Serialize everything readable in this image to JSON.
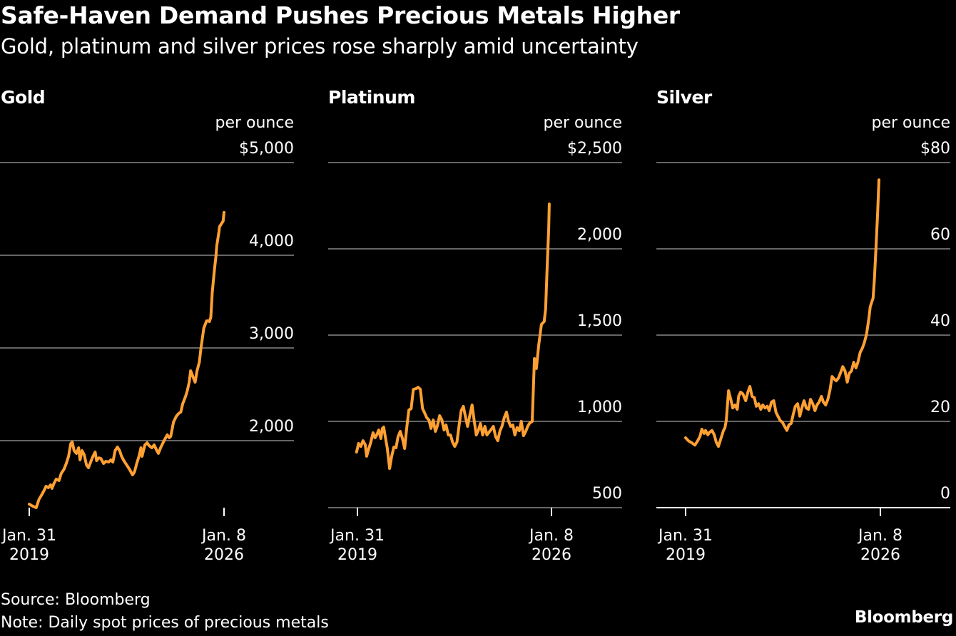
{
  "title": "Safe-Haven Demand Pushes Precious Metals Higher",
  "subtitle": "Gold, platinum and silver prices rose sharply amid uncertainty",
  "footer": {
    "source": "Source: Bloomberg",
    "note": "Note: Daily spot prices of precious metals",
    "brand": "Bloomberg"
  },
  "colors": {
    "line": "#FFA033",
    "grid": "#666666",
    "baseline": "#ffffff",
    "background": "#000000",
    "text": "#ffffff"
  },
  "chart_data": [
    {
      "type": "line",
      "title": "Gold",
      "unit_label": "per ounce",
      "ylim": [
        1277,
        5000
      ],
      "y_ticks": [
        2000,
        3000,
        4000,
        5000
      ],
      "y_tick_labels": [
        "2,000",
        "3,000",
        "4,000",
        "$5,000"
      ],
      "x_ticks": [
        2019.08,
        2026.02
      ],
      "x_tick_labels": [
        [
          "Jan. 31",
          "2019"
        ],
        [
          "Jan. 8",
          "2026"
        ]
      ],
      "xlim": [
        2018.08,
        2028.57
      ],
      "baseline": false,
      "grid": true,
      "series": [
        {
          "name": "Gold",
          "x": [
            2019.08,
            2019.21,
            2019.33,
            2019.43,
            2019.51,
            2019.61,
            2019.68,
            2019.76,
            2019.84,
            2019.89,
            2019.96,
            2020.04,
            2020.14,
            2020.22,
            2020.32,
            2020.4,
            2020.48,
            2020.56,
            2020.61,
            2020.68,
            2020.76,
            2020.84,
            2020.89,
            2020.96,
            2021.04,
            2021.12,
            2021.19,
            2021.27,
            2021.35,
            2021.43,
            2021.48,
            2021.56,
            2021.63,
            2021.73,
            2021.81,
            2021.91,
            2021.99,
            2022.06,
            2022.14,
            2022.22,
            2022.3,
            2022.37,
            2022.45,
            2022.55,
            2022.65,
            2022.76,
            2022.83,
            2022.91,
            2022.99,
            2023.06,
            2023.1,
            2023.2,
            2023.28,
            2023.35,
            2023.45,
            2023.53,
            2023.6,
            2023.68,
            2023.76,
            2023.86,
            2023.94,
            2024.0,
            2024.07,
            2024.12,
            2024.22,
            2024.32,
            2024.4,
            2024.48,
            2024.55,
            2024.65,
            2024.71,
            2024.78,
            2024.83,
            2024.91,
            2024.99,
            2025.06,
            2025.14,
            2025.2,
            2025.3,
            2025.4,
            2025.45,
            2025.5,
            2025.55,
            2025.6,
            2025.68,
            2025.73,
            2025.76,
            2025.84,
            2025.86,
            2025.99,
            2026.02
          ],
          "values": [
            1315,
            1292,
            1277,
            1369,
            1408,
            1462,
            1508,
            1492,
            1523,
            1485,
            1538,
            1585,
            1569,
            1646,
            1692,
            1754,
            1831,
            1969,
            1985,
            1892,
            1862,
            1923,
            1792,
            1892,
            1846,
            1738,
            1708,
            1769,
            1831,
            1877,
            1785,
            1815,
            1808,
            1754,
            1777,
            1769,
            1792,
            1769,
            1892,
            1931,
            1892,
            1831,
            1785,
            1738,
            1692,
            1631,
            1662,
            1754,
            1831,
            1923,
            1831,
            1954,
            1977,
            1946,
            1923,
            1954,
            1908,
            1862,
            1923,
            1985,
            2031,
            2062,
            2031,
            2046,
            2200,
            2262,
            2292,
            2308,
            2400,
            2477,
            2538,
            2631,
            2754,
            2692,
            2631,
            2754,
            2846,
            3000,
            3215,
            3292,
            3292,
            3285,
            3331,
            3600,
            3846,
            3985,
            4100,
            4254,
            4308,
            4369,
            4462
          ]
        }
      ]
    },
    {
      "type": "line",
      "title": "Platinum",
      "unit_label": "per ounce",
      "ylim": [
        500,
        2500
      ],
      "y_ticks": [
        500,
        1000,
        1500,
        2000,
        2500
      ],
      "y_tick_labels": [
        "500",
        "1,000",
        "1,500",
        "2,000",
        "$2,500"
      ],
      "x_ticks": [
        2019.08,
        2026.02
      ],
      "x_tick_labels": [
        [
          "Jan. 31",
          "2019"
        ],
        [
          "Jan. 8",
          "2026"
        ]
      ],
      "xlim": [
        2018.06,
        2028.57
      ],
      "baseline": false,
      "grid": true,
      "series": [
        {
          "name": "Platinum",
          "x": [
            2019.05,
            2019.12,
            2019.2,
            2019.28,
            2019.36,
            2019.41,
            2019.48,
            2019.56,
            2019.64,
            2019.71,
            2019.77,
            2019.84,
            2019.92,
            2019.97,
            2020.02,
            2020.07,
            2020.15,
            2020.23,
            2020.3,
            2020.38,
            2020.46,
            2020.53,
            2020.61,
            2020.69,
            2020.77,
            2020.84,
            2020.92,
            2021.0,
            2021.08,
            2021.18,
            2021.25,
            2021.33,
            2021.41,
            2021.48,
            2021.56,
            2021.64,
            2021.71,
            2021.79,
            2021.87,
            2021.94,
            2022.02,
            2022.1,
            2022.18,
            2022.25,
            2022.33,
            2022.41,
            2022.48,
            2022.56,
            2022.64,
            2022.71,
            2022.79,
            2022.87,
            2022.94,
            2023.02,
            2023.1,
            2023.18,
            2023.25,
            2023.33,
            2023.41,
            2023.48,
            2023.56,
            2023.64,
            2023.71,
            2023.79,
            2023.87,
            2023.94,
            2024.02,
            2024.1,
            2024.18,
            2024.25,
            2024.33,
            2024.41,
            2024.48,
            2024.56,
            2024.64,
            2024.71,
            2024.79,
            2024.87,
            2024.94,
            2025.02,
            2025.1,
            2025.18,
            2025.25,
            2025.33,
            2025.41,
            2025.48,
            2025.56,
            2025.66,
            2025.76,
            2025.81,
            2025.86,
            2025.92,
            2025.94
          ],
          "values": [
            822,
            872,
            855,
            888,
            864,
            798,
            839,
            880,
            934,
            905,
            921,
            950,
            901,
            959,
            967,
            917,
            843,
            727,
            793,
            851,
            847,
            909,
            942,
            901,
            843,
            959,
            1066,
            1074,
            1186,
            1190,
            1198,
            1186,
            1074,
            1050,
            1021,
            1008,
            959,
            1008,
            942,
            975,
            1033,
            1008,
            950,
            979,
            921,
            921,
            880,
            855,
            880,
            971,
            1062,
            1087,
            1029,
            971,
            1037,
            1095,
            1012,
            921,
            950,
            988,
            921,
            971,
            921,
            938,
            955,
            971,
            913,
            888,
            946,
            971,
            1021,
            1054,
            1004,
            971,
            979,
            921,
            964,
            946,
            1000,
            917,
            942,
            975,
            992,
            1000,
            1364,
            1306,
            1438,
            1562,
            1579,
            1653,
            1868,
            2116,
            2260
          ]
        }
      ]
    },
    {
      "type": "line",
      "title": "Silver",
      "unit_label": "per ounce",
      "ylim": [
        0,
        80
      ],
      "y_ticks": [
        0,
        20,
        40,
        60,
        80
      ],
      "y_tick_labels": [
        "0",
        "20",
        "40",
        "60",
        "$80"
      ],
      "x_ticks": [
        2019.08,
        2026.02
      ],
      "x_tick_labels": [
        [
          "Jan. 31",
          "2019"
        ],
        [
          "Jan. 8",
          "2026"
        ]
      ],
      "xlim": [
        2018.06,
        2028.57
      ],
      "baseline": true,
      "grid": true,
      "series": [
        {
          "name": "Silver",
          "x": [
            2019.08,
            2019.18,
            2019.31,
            2019.41,
            2019.51,
            2019.59,
            2019.66,
            2019.74,
            2019.79,
            2019.87,
            2019.94,
            2020.02,
            2020.1,
            2020.17,
            2020.25,
            2020.36,
            2020.43,
            2020.48,
            2020.53,
            2020.61,
            2020.69,
            2020.76,
            2020.84,
            2020.92,
            2020.97,
            2021.04,
            2021.12,
            2021.22,
            2021.3,
            2021.37,
            2021.45,
            2021.53,
            2021.6,
            2021.68,
            2021.76,
            2021.83,
            2021.91,
            2021.99,
            2022.06,
            2022.14,
            2022.22,
            2022.3,
            2022.37,
            2022.45,
            2022.53,
            2022.61,
            2022.69,
            2022.76,
            2022.84,
            2022.92,
            2022.99,
            2023.07,
            2023.15,
            2023.22,
            2023.3,
            2023.38,
            2023.46,
            2023.53,
            2023.61,
            2023.69,
            2023.76,
            2023.84,
            2023.92,
            2023.99,
            2024.07,
            2024.15,
            2024.22,
            2024.3,
            2024.38,
            2024.45,
            2024.53,
            2024.61,
            2024.68,
            2024.76,
            2024.84,
            2024.91,
            2024.99,
            2025.07,
            2025.15,
            2025.22,
            2025.3,
            2025.38,
            2025.45,
            2025.53,
            2025.61,
            2025.66,
            2025.71,
            2025.76,
            2025.81,
            2025.86,
            2025.92,
            2025.97
          ],
          "values": [
            16.2,
            15.5,
            15.0,
            14.5,
            15.5,
            16.5,
            18.2,
            17.2,
            17.9,
            16.9,
            17.5,
            17.9,
            16.9,
            15.2,
            14.2,
            16.5,
            17.9,
            18.5,
            20.2,
            27.1,
            25.1,
            23.1,
            23.8,
            22.8,
            25.8,
            26.8,
            26.4,
            24.8,
            26.8,
            28.1,
            25.8,
            25.5,
            23.5,
            24.1,
            22.8,
            23.8,
            23.1,
            23.5,
            22.5,
            24.5,
            24.8,
            22.1,
            21.2,
            20.2,
            19.8,
            18.8,
            17.9,
            19.2,
            19.5,
            21.8,
            23.5,
            24.1,
            21.2,
            23.1,
            24.8,
            23.1,
            22.8,
            25.1,
            24.1,
            22.5,
            23.8,
            24.5,
            25.8,
            24.5,
            23.8,
            25.1,
            27.1,
            30.4,
            29.8,
            29.4,
            30.1,
            31.4,
            32.7,
            31.7,
            29.1,
            31.1,
            31.7,
            33.7,
            32.4,
            33.7,
            36.0,
            37.0,
            38.3,
            40.3,
            43.9,
            46.6,
            47.6,
            48.6,
            53.2,
            59.8,
            68.1,
            76.0
          ]
        }
      ]
    }
  ]
}
